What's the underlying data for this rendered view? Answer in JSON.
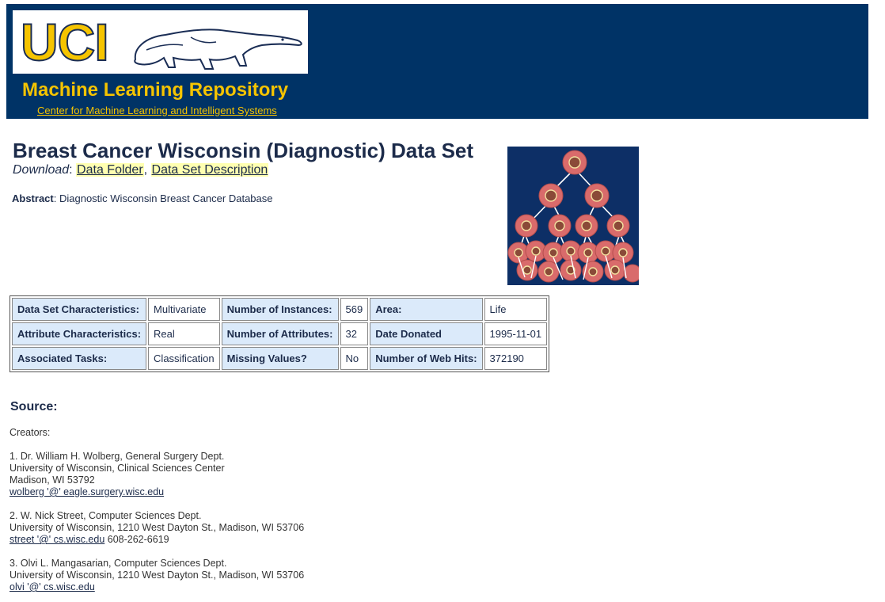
{
  "header": {
    "logo_text": "UCI",
    "title": "Machine Learning Repository",
    "subtitle_link": "Center for Machine Learning and Intelligent Systems"
  },
  "dataset": {
    "title": "Breast Cancer Wisconsin (Diagnostic) Data Set",
    "download_label": "Download",
    "download_sep": ": ",
    "link_folder": "Data Folder",
    "link_comma": ", ",
    "link_description": "Data Set Description",
    "abstract_label": "Abstract",
    "abstract_text": ": Diagnostic Wisconsin Breast Cancer Database"
  },
  "characteristics": {
    "rows": [
      [
        "Data Set Characteristics:",
        "Multivariate",
        "Number of Instances:",
        "569",
        "Area:",
        "Life"
      ],
      [
        "Attribute Characteristics:",
        "Real",
        "Number of Attributes:",
        "32",
        "Date Donated",
        "1995-11-01"
      ],
      [
        "Associated Tasks:",
        "Classification",
        "Missing Values?",
        "No",
        "Number of Web Hits:",
        "372190"
      ]
    ]
  },
  "source": {
    "heading": "Source:",
    "creators_label": "Creators:",
    "creators": [
      {
        "lines": [
          "1. Dr. William H. Wolberg, General Surgery Dept.",
          "University of Wisconsin, Clinical Sciences Center",
          "Madison, WI 53792"
        ],
        "email": "wolberg '@' eagle.surgery.wisc.edu",
        "extra": ""
      },
      {
        "lines": [
          "2. W. Nick Street, Computer Sciences Dept.",
          "University of Wisconsin, 1210 West Dayton St., Madison, WI 53706"
        ],
        "email": "street '@' cs.wisc.edu",
        "extra": " 608-262-6619"
      },
      {
        "lines": [
          "3. Olvi L. Mangasarian, Computer Sciences Dept.",
          "University of Wisconsin, 1210 West Dayton St., Madison, WI 53706"
        ],
        "email": "olvi '@' cs.wisc.edu",
        "extra": ""
      }
    ]
  },
  "colors": {
    "header_bg": "#003366",
    "brand_yellow": "#f5c400",
    "label_cell_bg": "#dbeafa",
    "link_highlight": "#ffffb0"
  },
  "icons": {
    "logo_mascot": "anteater-icon",
    "dataset_image": "decision-tree-cells-image"
  }
}
